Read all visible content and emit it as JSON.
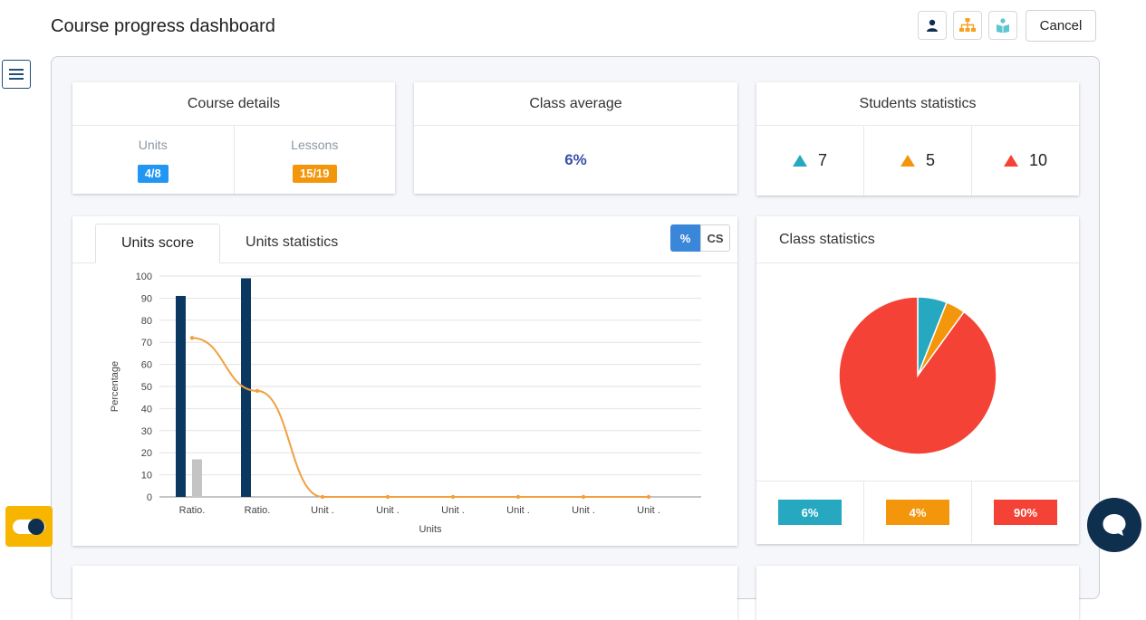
{
  "header": {
    "title": "Course progress dashboard",
    "cancel_label": "Cancel",
    "icons": [
      "student-icon",
      "hierarchy-icon",
      "reading-icon"
    ]
  },
  "course_details": {
    "title": "Course details",
    "units_label": "Units",
    "units_value": "4/8",
    "lessons_label": "Lessons",
    "lessons_value": "15/19"
  },
  "class_average": {
    "title": "Class average",
    "value": "6%"
  },
  "students_statistics": {
    "title": "Students statistics",
    "items": [
      {
        "value": "7",
        "color": "#26a9c0"
      },
      {
        "value": "5",
        "color": "#f4960c"
      },
      {
        "value": "10",
        "color": "#f44336"
      }
    ]
  },
  "units_panel": {
    "tabs": [
      "Units score",
      "Units statistics"
    ],
    "active_tab": 0,
    "toggle": [
      "%",
      "CS"
    ],
    "active_toggle": 0
  },
  "class_statistics": {
    "title": "Class statistics",
    "legend": [
      {
        "label": "6%",
        "color": "#26a9c0"
      },
      {
        "label": "4%",
        "color": "#f4960c"
      },
      {
        "label": "90%",
        "color": "#f44336"
      }
    ]
  },
  "chart_data": [
    {
      "type": "bar",
      "categories": [
        "Ratio.",
        "Ratio.",
        "Unit .",
        "Unit .",
        "Unit .",
        "Unit .",
        "Unit .",
        "Unit ."
      ],
      "series": [
        {
          "values": [
            91,
            99,
            0,
            0,
            0,
            0,
            0,
            0
          ],
          "color": "#0b3861",
          "kind": "bar"
        },
        {
          "values": [
            17,
            0,
            0,
            0,
            0,
            0,
            0,
            0
          ],
          "color": "#c4c4c4",
          "kind": "bar"
        },
        {
          "values": [
            72,
            48,
            0,
            0,
            0,
            0,
            0,
            0
          ],
          "color": "#f0a040",
          "kind": "line"
        }
      ],
      "xlabel": "Units",
      "ylabel": "Percentage",
      "ylim": [
        0,
        100
      ],
      "yticks": [
        0,
        10,
        20,
        30,
        40,
        50,
        60,
        70,
        80,
        90,
        100
      ],
      "grid": true
    },
    {
      "type": "pie",
      "labels": [
        "6%",
        "4%",
        "90%"
      ],
      "values": [
        6,
        4,
        90
      ],
      "colors": [
        "#26a9c0",
        "#f4960c",
        "#f44336"
      ]
    }
  ]
}
